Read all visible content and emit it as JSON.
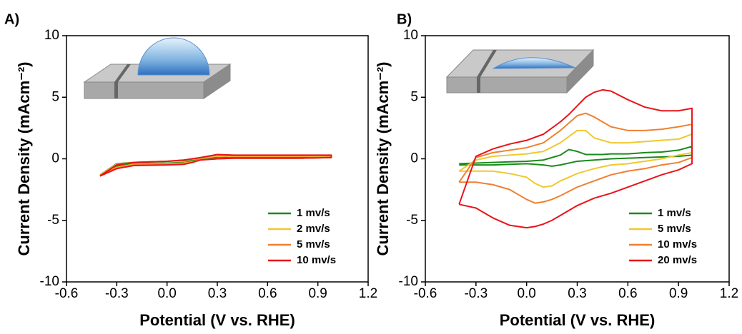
{
  "chart_data": [
    {
      "type": "line",
      "panel_label": "A)",
      "x_label": "Potential (V vs. RHE)",
      "y_label": "Current Density (mAcm⁻²)",
      "x": [
        -0.4,
        -0.3,
        -0.2,
        0,
        0.1,
        0.15,
        0.2,
        0.3,
        0.4,
        0.6,
        0.8,
        0.98,
        0.98,
        0.8,
        0.6,
        0.4,
        0.3,
        0.2,
        0.15,
        0.1,
        0,
        -0.2,
        -0.3,
        -0.4
      ],
      "series": [
        {
          "name": "1 mv/s",
          "color": "#1a8a1a",
          "values": [
            -1.3,
            -0.4,
            -0.3,
            -0.2,
            -0.15,
            -0.1,
            0,
            0.15,
            0.15,
            0.15,
            0.15,
            0.15,
            0.1,
            0.05,
            0.05,
            0.05,
            0.02,
            -0.05,
            -0.2,
            -0.3,
            -0.35,
            -0.4,
            -0.6,
            -1.3
          ]
        },
        {
          "name": "2 mv/s",
          "color": "#f0c830",
          "values": [
            -1.3,
            -0.45,
            -0.3,
            -0.2,
            -0.12,
            -0.05,
            0.05,
            0.22,
            0.2,
            0.2,
            0.2,
            0.2,
            0.1,
            0.05,
            0.05,
            0.05,
            0.01,
            -0.07,
            -0.25,
            -0.35,
            -0.4,
            -0.45,
            -0.7,
            -1.3
          ]
        },
        {
          "name": "5 mv/s",
          "color": "#f08030",
          "values": [
            -1.35,
            -0.5,
            -0.3,
            -0.2,
            -0.1,
            -0.02,
            0.08,
            0.3,
            0.25,
            0.25,
            0.25,
            0.25,
            0.1,
            0.05,
            0.05,
            0.05,
            0,
            -0.08,
            -0.28,
            -0.4,
            -0.45,
            -0.5,
            -0.75,
            -1.35
          ]
        },
        {
          "name": "10 mv/s",
          "color": "#e8141a",
          "values": [
            -1.4,
            -0.5,
            -0.3,
            -0.2,
            -0.1,
            0,
            0.1,
            0.35,
            0.3,
            0.3,
            0.3,
            0.3,
            0.1,
            0.05,
            0.05,
            0.05,
            0,
            -0.1,
            -0.3,
            -0.45,
            -0.5,
            -0.55,
            -0.8,
            -1.4
          ]
        }
      ],
      "xlim": [
        -0.6,
        1.2
      ],
      "xticks": [
        -0.6,
        -0.3,
        {
          "value": 0,
          "label": "0.0"
        },
        0.3,
        0.6,
        0.9,
        1.2
      ],
      "ylim": [
        -10,
        10
      ],
      "yticks": [
        -10,
        -5,
        0,
        5,
        10
      ],
      "legend": "lower right"
    },
    {
      "type": "line",
      "panel_label": "B)",
      "x_label": "Potential (V vs. RHE)",
      "y_label": "Current Density (mAcm⁻²)",
      "x": [
        -0.4,
        -0.3,
        -0.2,
        -0.1,
        0,
        0.1,
        0.2,
        0.25,
        0.3,
        0.35,
        0.4,
        0.45,
        0.5,
        0.6,
        0.7,
        0.8,
        0.9,
        0.98,
        0.98,
        0.9,
        0.8,
        0.7,
        0.6,
        0.5,
        0.4,
        0.3,
        0.2,
        0.15,
        0.1,
        0.05,
        0,
        -0.1,
        -0.2,
        -0.3,
        -0.4
      ],
      "series": [
        {
          "name": "1 mv/s",
          "color": "#1a8a1a",
          "values": [
            -0.4,
            -0.35,
            -0.3,
            -0.25,
            -0.2,
            -0.1,
            0.3,
            0.75,
            0.6,
            0.35,
            0.35,
            0.35,
            0.4,
            0.4,
            0.5,
            0.55,
            0.7,
            1.0,
            0.3,
            0.2,
            0.15,
            0.1,
            0.05,
            0,
            -0.1,
            -0.2,
            -0.5,
            -0.6,
            -0.5,
            -0.45,
            -0.4,
            -0.45,
            -0.5,
            -0.5,
            -0.5
          ]
        },
        {
          "name": "5 mv/s",
          "color": "#f0c830",
          "values": [
            -1.0,
            -0.1,
            0.2,
            0.3,
            0.4,
            0.6,
            1.3,
            1.8,
            2.3,
            2.3,
            1.7,
            1.5,
            1.3,
            1.3,
            1.4,
            1.5,
            1.6,
            2.0,
            0.5,
            0.3,
            0,
            -0.2,
            -0.4,
            -0.5,
            -0.8,
            -1.2,
            -1.8,
            -2.2,
            -2.3,
            -2.0,
            -1.5,
            -1.2,
            -1.0,
            -1.0,
            -1.0
          ]
        },
        {
          "name": "10 mv/s",
          "color": "#f08030",
          "values": [
            -1.9,
            0.1,
            0.5,
            0.7,
            0.9,
            1.3,
            2.3,
            2.9,
            3.5,
            3.7,
            3.4,
            3.0,
            2.6,
            2.3,
            2.3,
            2.4,
            2.6,
            2.8,
            0.1,
            -0.3,
            -0.5,
            -0.8,
            -1.0,
            -1.3,
            -1.8,
            -2.3,
            -3.0,
            -3.3,
            -3.5,
            -3.6,
            -3.3,
            -2.5,
            -2.1,
            -1.9,
            -1.9
          ]
        },
        {
          "name": "20 mv/s",
          "color": "#e8141a",
          "values": [
            -3.7,
            0.2,
            0.8,
            1.2,
            1.5,
            2.0,
            3.0,
            3.6,
            4.3,
            5.0,
            5.4,
            5.6,
            5.5,
            4.8,
            4.2,
            3.9,
            3.9,
            4.1,
            -0.4,
            -0.9,
            -1.3,
            -1.8,
            -2.3,
            -2.8,
            -3.2,
            -3.8,
            -4.6,
            -5.0,
            -5.3,
            -5.5,
            -5.6,
            -5.4,
            -4.8,
            -4.0,
            -3.7
          ]
        }
      ],
      "xlim": [
        -0.6,
        1.2
      ],
      "xticks": [
        -0.6,
        -0.3,
        {
          "value": 0,
          "label": "0.0"
        },
        0.3,
        0.6,
        0.9,
        1.2
      ],
      "ylim": [
        -10,
        10
      ],
      "yticks": [
        -10,
        -5,
        0,
        5,
        10
      ],
      "legend": "lower right"
    }
  ]
}
